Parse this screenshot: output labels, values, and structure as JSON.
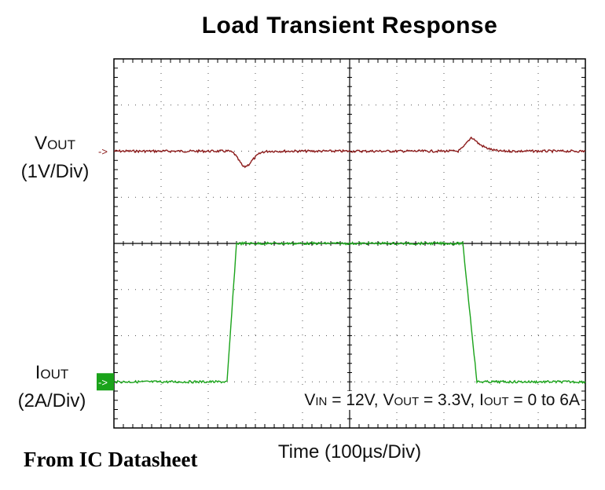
{
  "title": "Load Transient Response",
  "footnote": "From IC Datasheet",
  "x_axis_label": "Time (100µs/Div)",
  "channels": {
    "vout": {
      "name_main": "V",
      "name_sub": "OUT",
      "scale": "(1V/Div)",
      "color": "#8b1a1a",
      "marker": "->"
    },
    "iout": {
      "name_main": "I",
      "name_sub": "OUT",
      "scale": "(2A/Div)",
      "color": "#1aa31a",
      "marker": "->"
    }
  },
  "conditions": {
    "vin_main": "V",
    "vin_sub": "IN",
    "vin_val": " = 12V, ",
    "vout_main": "V",
    "vout_sub": "OUT",
    "vout_val": " = 3.3V, ",
    "iout_main": "I",
    "iout_sub": "OUT",
    "iout_val": " = 0 to 6A"
  },
  "chart_data": {
    "type": "line",
    "x_divisions": 10,
    "y_divisions": 8,
    "grid": true,
    "x_unit": "µs",
    "x_per_div": 100,
    "xlim": [
      0,
      1000
    ],
    "series": [
      {
        "channel": "vout",
        "color": "#8b1a1a",
        "y_offset_div": 6.0,
        "points": [
          [
            0,
            0.0
          ],
          [
            245,
            0.0
          ],
          [
            255,
            -0.05
          ],
          [
            265,
            -0.2
          ],
          [
            275,
            -0.35
          ],
          [
            285,
            -0.3
          ],
          [
            295,
            -0.18
          ],
          [
            305,
            -0.08
          ],
          [
            315,
            -0.02
          ],
          [
            330,
            0.0
          ],
          [
            730,
            0.0
          ],
          [
            740,
            0.07
          ],
          [
            750,
            0.2
          ],
          [
            758,
            0.3
          ],
          [
            765,
            0.25
          ],
          [
            775,
            0.15
          ],
          [
            790,
            0.07
          ],
          [
            805,
            0.02
          ],
          [
            820,
            0.0
          ],
          [
            1000,
            0.0
          ]
        ]
      },
      {
        "channel": "iout",
        "color": "#1aa31a",
        "y_offset_div": 1.0,
        "points": [
          [
            0,
            0.0
          ],
          [
            240,
            0.0
          ],
          [
            260,
            6.0
          ],
          [
            740,
            6.0
          ],
          [
            770,
            0.0
          ],
          [
            1000,
            0.0
          ]
        ]
      }
    ]
  }
}
